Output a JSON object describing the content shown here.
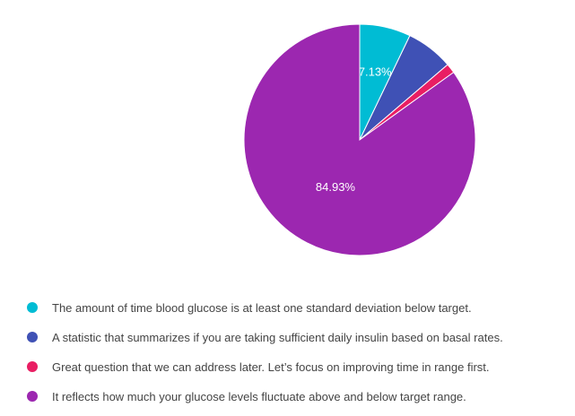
{
  "chart_data": {
    "type": "pie",
    "title": "",
    "slices": [
      {
        "label": "The amount of time blood glucose is at least one standard deviation below target.",
        "value": 7.13,
        "percent_label": "7.13%",
        "color": "#00bcd4"
      },
      {
        "label": "A statistic that summarizes if you are taking sufficient daily insulin based on basal rates.",
        "value": 6.6,
        "percent_label": "",
        "color": "#3f51b5"
      },
      {
        "label": "Great question that we can address later. Let’s focus on improving time in range first.",
        "value": 1.34,
        "percent_label": "",
        "color": "#e91e63"
      },
      {
        "label": "It reflects how much your glucose levels fluctuate above and below target range.",
        "value": 84.93,
        "percent_label": "84.93%",
        "color": "#9c27b0"
      }
    ],
    "legend_position": "bottom-left",
    "start_angle": "top, clockwise"
  }
}
